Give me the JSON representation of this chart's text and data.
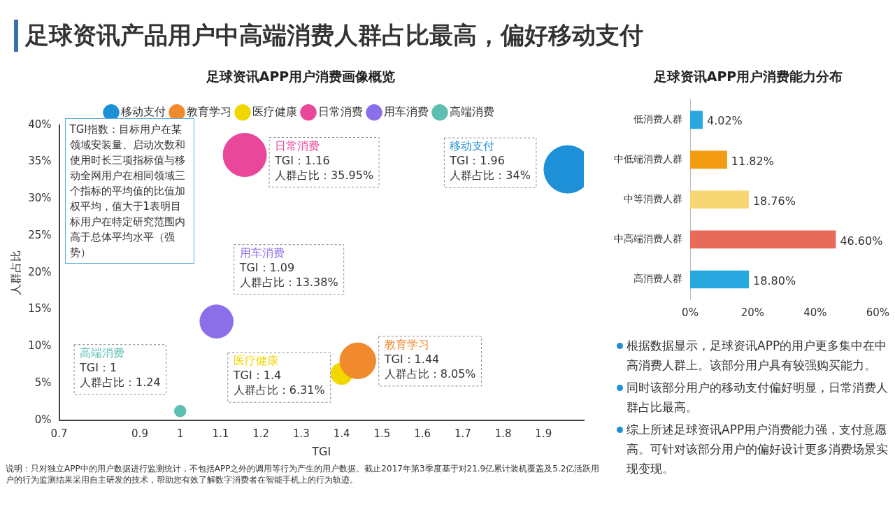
{
  "chart_data": [
    {
      "type": "bubble",
      "title": "足球资讯APP用户消费画像概览",
      "xlabel": "TGI",
      "ylabel": "人群占比",
      "xlim": [
        0.7,
        2.0
      ],
      "xticks": [
        0.7,
        0.9,
        1,
        1.1,
        1.2,
        1.3,
        1.4,
        1.5,
        1.6,
        1.7,
        1.8,
        1.9
      ],
      "ylim": [
        0,
        40
      ],
      "yticks": [
        {
          "value": 0,
          "label": "0%"
        },
        {
          "value": 5,
          "label": "5%"
        },
        {
          "value": 10,
          "label": "10%"
        },
        {
          "value": 15,
          "label": "15%"
        },
        {
          "value": 20,
          "label": "20%"
        },
        {
          "value": 25,
          "label": "25%"
        },
        {
          "value": 30,
          "label": "30%"
        },
        {
          "value": 35,
          "label": "35%"
        },
        {
          "value": 40,
          "label": "40%"
        }
      ],
      "grid": false,
      "legend": "top",
      "series": [
        {
          "name": "移动支付",
          "color": "#1e90d8",
          "x": [
            1.96
          ],
          "values": [
            34
          ],
          "sizes": [
            1
          ],
          "value_labels": [
            "TGI：1.96\n人群占比：34%"
          ]
        },
        {
          "name": "教育学习",
          "color": "#f08a2c",
          "x": [
            1.44
          ],
          "values": [
            8.05
          ],
          "sizes": [
            0.57
          ],
          "value_labels": [
            "TGI：1.44\n人群占比：8.05%"
          ]
        },
        {
          "name": "医疗健康",
          "color": "#f2d600",
          "x": [
            1.4
          ],
          "values": [
            6.31
          ],
          "sizes": [
            0.21
          ],
          "value_labels": [
            "TGI：1.4\n人群占比：6.31%"
          ]
        },
        {
          "name": "日常消费",
          "color": "#e8479a",
          "x": [
            1.16
          ],
          "values": [
            35.95
          ],
          "sizes": [
            0.83
          ],
          "value_labels": [
            "TGI：1.16\n人群占比：35.95%"
          ]
        },
        {
          "name": "用车消费",
          "color": "#8b6fe8",
          "x": [
            1.09
          ],
          "values": [
            13.38
          ],
          "sizes": [
            0.49
          ],
          "value_labels": [
            "TGI：1.09\n人群占比：13.38%"
          ]
        },
        {
          "name": "高端消费",
          "color": "#5cbfb0",
          "x": [
            1
          ],
          "values": [
            1.24
          ],
          "sizes": [
            0.06
          ],
          "value_labels": [
            "TGI：1\n人群占比：1.24"
          ]
        }
      ],
      "annotations": [
        "TGI指数：目标用户在某领域安装量、启动次数和使用时长三项指标值与移动全网用户在相同领域三个指标的平均值的比值加权平均，值大于1表明目标用户在特定研究范围内高于总体平均水平（强势）",
        "说明：只对独立APP中的用户数据进行监测统计，不包括APP之外的调用等行为产生的用户数据。截止2017年第3季度基于对21.9亿累计装机覆盖及5.2亿活跃用户的行为监测结果采用自主研发的技术，帮助您有效了解数字消费者在智能手机上的行为轨迹。"
      ]
    },
    {
      "type": "bar",
      "orientation": "horizontal",
      "title": "足球资讯APP用户消费能力分布",
      "categories": [
        "低消费人群",
        "中低端消费人群",
        "中等消费人群",
        "中高端消费人群",
        "高消费人群"
      ],
      "values": [
        4.02,
        11.82,
        18.76,
        46.6,
        18.8
      ],
      "colors": [
        "#29a8e0",
        "#f39c12",
        "#f7d774",
        "#e86a5a",
        "#29a8e0"
      ],
      "value_labels": [
        "4.02%",
        "11.82%",
        "18.76%",
        "46.60%",
        "18.80%"
      ],
      "xlim": [
        0,
        60
      ],
      "xticks": [
        {
          "value": 0,
          "label": "0%"
        },
        {
          "value": 20,
          "label": "20%"
        },
        {
          "value": 40,
          "label": "40%"
        },
        {
          "value": 60,
          "label": "60%"
        }
      ],
      "grid": false,
      "legend": false
    },
    {
      "type": "other",
      "title": "足球资讯产品用户中高端消费人群占比最高，偏好移动支付",
      "annotations": [
        "根据数据显示，足球资讯APP的用户更多集中在中高消费人群上。该部分用户具有较强购买能力。",
        "同时该部分用户的移动支付偏好明显，日常消费人群占比最高。",
        "综上所述足球资讯APP用户消费能力强，支付意愿高。可针对该部分用户的偏好设计更多消费场景实现变现。"
      ]
    }
  ]
}
